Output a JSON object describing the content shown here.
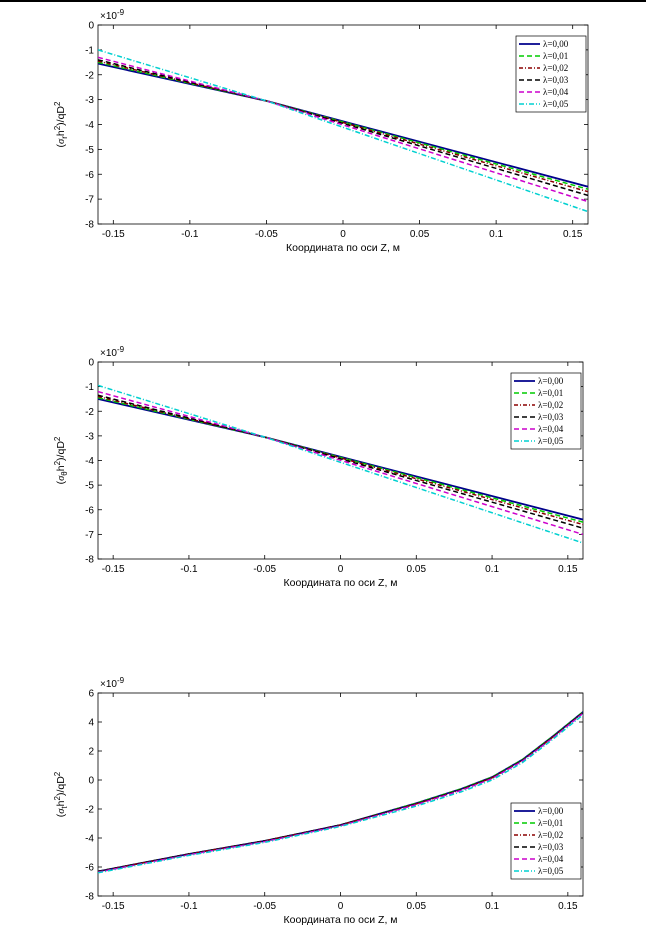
{
  "chart_data": [
    {
      "type": "line",
      "title": "",
      "xlabel": "Координата по оси Z, м",
      "ylabel_symbol": "σ",
      "ylabel_subscript": "r",
      "ylabel_rest": "h",
      "ylabel_tail": ")/qD",
      "ylabel_prefix": "(",
      "exponent_label": "×10",
      "exponent_power": "-9",
      "xlim": [
        -0.16,
        0.16
      ],
      "ylim": [
        -8,
        0
      ],
      "x_ticks": [
        "-0.15",
        "-0.1",
        "-0.05",
        "0",
        "0.05",
        "0.1",
        "0.15"
      ],
      "y_ticks": [
        "0",
        "-1",
        "-2",
        "-3",
        "-4",
        "-5",
        "-6",
        "-7",
        "-8"
      ],
      "legend_position": "top-right",
      "x": [
        -0.16,
        -0.05,
        0.16
      ],
      "series": [
        {
          "name": "λ=0,00",
          "color": "#00008b",
          "dash": "",
          "width": 1.8,
          "values": [
            -1.55,
            -3.05,
            -6.5
          ]
        },
        {
          "name": "λ=0,01",
          "color": "#00cc00",
          "dash": "5,3",
          "width": 1.5,
          "values": [
            -1.5,
            -3.05,
            -6.6
          ]
        },
        {
          "name": "λ=0,02",
          "color": "#8b0000",
          "dash": "4,2,1,2",
          "width": 1.5,
          "values": [
            -1.45,
            -3.05,
            -6.7
          ]
        },
        {
          "name": "λ=0,03",
          "color": "#000000",
          "dash": "5,3",
          "width": 1.5,
          "values": [
            -1.4,
            -3.05,
            -6.85
          ]
        },
        {
          "name": "λ=0,04",
          "color": "#cc00cc",
          "dash": "5,3",
          "width": 1.5,
          "values": [
            -1.3,
            -3.05,
            -7.1
          ]
        },
        {
          "name": "λ=0,05",
          "color": "#00d0d0",
          "dash": "5,2,1,2",
          "width": 1.5,
          "values": [
            -1.0,
            -3.05,
            -7.5
          ]
        }
      ]
    },
    {
      "type": "line",
      "title": "",
      "xlabel": "Координата по оси Z, м",
      "ylabel_symbol": "σ",
      "ylabel_subscript": "θ",
      "ylabel_rest": "h",
      "ylabel_tail": ")/qD",
      "ylabel_prefix": "(",
      "exponent_label": "×10",
      "exponent_power": "-9",
      "xlim": [
        -0.16,
        0.16
      ],
      "ylim": [
        -8,
        0
      ],
      "x_ticks": [
        "-0.15",
        "-0.1",
        "-0.05",
        "0",
        "0.05",
        "0.1",
        "0.15"
      ],
      "y_ticks": [
        "0",
        "-1",
        "-2",
        "-3",
        "-4",
        "-5",
        "-6",
        "-7",
        "-8"
      ],
      "legend_position": "top-right",
      "x": [
        -0.16,
        -0.05,
        0.16
      ],
      "series": [
        {
          "name": "λ=0,00",
          "color": "#00008b",
          "dash": "",
          "width": 1.8,
          "values": [
            -1.5,
            -3.05,
            -6.4
          ]
        },
        {
          "name": "λ=0,01",
          "color": "#00cc00",
          "dash": "5,3",
          "width": 1.5,
          "values": [
            -1.45,
            -3.05,
            -6.5
          ]
        },
        {
          "name": "λ=0,02",
          "color": "#8b0000",
          "dash": "4,2,1,2",
          "width": 1.5,
          "values": [
            -1.4,
            -3.05,
            -6.6
          ]
        },
        {
          "name": "λ=0,03",
          "color": "#000000",
          "dash": "5,3",
          "width": 1.5,
          "values": [
            -1.35,
            -3.05,
            -6.75
          ]
        },
        {
          "name": "λ=0,04",
          "color": "#cc00cc",
          "dash": "5,3",
          "width": 1.5,
          "values": [
            -1.2,
            -3.05,
            -7.0
          ]
        },
        {
          "name": "λ=0,05",
          "color": "#00d0d0",
          "dash": "5,2,1,2",
          "width": 1.5,
          "values": [
            -0.95,
            -3.05,
            -7.35
          ]
        }
      ]
    },
    {
      "type": "line",
      "title": "",
      "xlabel": "Координата по оси Z, м",
      "ylabel_symbol": "σ",
      "ylabel_subscript": "t",
      "ylabel_rest": "h",
      "ylabel_tail": ")/qD",
      "ylabel_prefix": "(",
      "exponent_label": "×10",
      "exponent_power": "-9",
      "xlim": [
        -0.16,
        0.16
      ],
      "ylim": [
        -8,
        6
      ],
      "x_ticks": [
        "-0.15",
        "-0.1",
        "-0.05",
        "0",
        "0.05",
        "0.1",
        "0.15"
      ],
      "y_ticks": [
        "6",
        "4",
        "2",
        "0",
        "-2",
        "-4",
        "-6",
        "-8"
      ],
      "legend_position": "bottom-right",
      "x": [
        -0.16,
        -0.1,
        -0.05,
        0,
        0.05,
        0.08,
        0.1,
        0.12,
        0.14,
        0.16
      ],
      "series": [
        {
          "name": "λ=0,00",
          "color": "#00008b",
          "dash": "",
          "width": 1.8,
          "values": [
            -6.3,
            -5.1,
            -4.2,
            -3.1,
            -1.6,
            -0.6,
            0.2,
            1.4,
            3.0,
            4.7
          ]
        },
        {
          "name": "λ=0,01",
          "color": "#00cc00",
          "dash": "5,3",
          "width": 1.5,
          "values": [
            -6.3,
            -5.1,
            -4.2,
            -3.1,
            -1.6,
            -0.6,
            0.2,
            1.4,
            3.0,
            4.7
          ]
        },
        {
          "name": "λ=0,02",
          "color": "#8b0000",
          "dash": "4,2,1,2",
          "width": 1.5,
          "values": [
            -6.3,
            -5.1,
            -4.2,
            -3.1,
            -1.65,
            -0.65,
            0.15,
            1.35,
            2.95,
            4.65
          ]
        },
        {
          "name": "λ=0,03",
          "color": "#000000",
          "dash": "5,3",
          "width": 1.5,
          "values": [
            -6.3,
            -5.1,
            -4.2,
            -3.1,
            -1.65,
            -0.65,
            0.15,
            1.35,
            2.95,
            4.65
          ]
        },
        {
          "name": "λ=0,04",
          "color": "#cc00cc",
          "dash": "5,3",
          "width": 1.5,
          "values": [
            -6.35,
            -5.15,
            -4.25,
            -3.15,
            -1.7,
            -0.7,
            0.1,
            1.3,
            2.9,
            4.6
          ]
        },
        {
          "name": "λ=0,05",
          "color": "#00d0d0",
          "dash": "5,2,1,2",
          "width": 1.5,
          "values": [
            -6.4,
            -5.2,
            -4.3,
            -3.2,
            -1.8,
            -0.8,
            0.0,
            1.2,
            2.8,
            4.5
          ]
        }
      ]
    }
  ]
}
